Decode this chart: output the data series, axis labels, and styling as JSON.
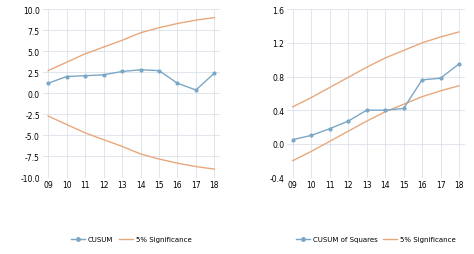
{
  "left": {
    "x": [
      9,
      10,
      11,
      12,
      13,
      14,
      15,
      16,
      17,
      18
    ],
    "cusum": [
      1.2,
      2.0,
      2.1,
      2.2,
      2.6,
      2.8,
      2.7,
      1.2,
      0.4,
      2.4
    ],
    "sig_upper": [
      2.7,
      3.7,
      4.7,
      5.5,
      6.3,
      7.2,
      7.8,
      8.3,
      8.7,
      9.0
    ],
    "sig_lower": [
      -2.7,
      -3.7,
      -4.7,
      -5.5,
      -6.3,
      -7.2,
      -7.8,
      -8.3,
      -8.7,
      -9.0
    ],
    "ylim": [
      -10.0,
      10.0
    ],
    "yticks": [
      -10.0,
      -7.5,
      -5.0,
      -2.5,
      0.0,
      2.5,
      5.0,
      7.5,
      10.0
    ],
    "cusum_color": "#7ba7c7",
    "sig_color": "#e8a87c",
    "legend1": "CUSUM",
    "legend2": "5% Significance"
  },
  "right": {
    "x": [
      9,
      10,
      11,
      12,
      13,
      14,
      15,
      16,
      17,
      18
    ],
    "cusum_sq": [
      0.05,
      0.1,
      0.18,
      0.27,
      0.4,
      0.4,
      0.42,
      0.76,
      0.78,
      0.95
    ],
    "sig_upper": [
      0.44,
      0.55,
      0.67,
      0.79,
      0.91,
      1.02,
      1.11,
      1.2,
      1.27,
      1.33
    ],
    "sig_lower": [
      -0.2,
      -0.09,
      0.03,
      0.15,
      0.27,
      0.38,
      0.47,
      0.56,
      0.63,
      0.69
    ],
    "ylim": [
      -0.4,
      1.6
    ],
    "yticks": [
      -0.4,
      0.0,
      0.4,
      0.8,
      1.2,
      1.6
    ],
    "cusum_color": "#7ba7c7",
    "sig_color": "#e8a87c",
    "legend1": "CUSUM of Squares",
    "legend2": "5% Significance"
  },
  "xticks": [
    9,
    10,
    11,
    12,
    13,
    14,
    15,
    16,
    17,
    18
  ],
  "xticklabels": [
    "09",
    "10",
    "11",
    "12",
    "13",
    "14",
    "15",
    "16",
    "17",
    "18"
  ],
  "background": "#ffffff",
  "grid_color": "#d5dce4"
}
